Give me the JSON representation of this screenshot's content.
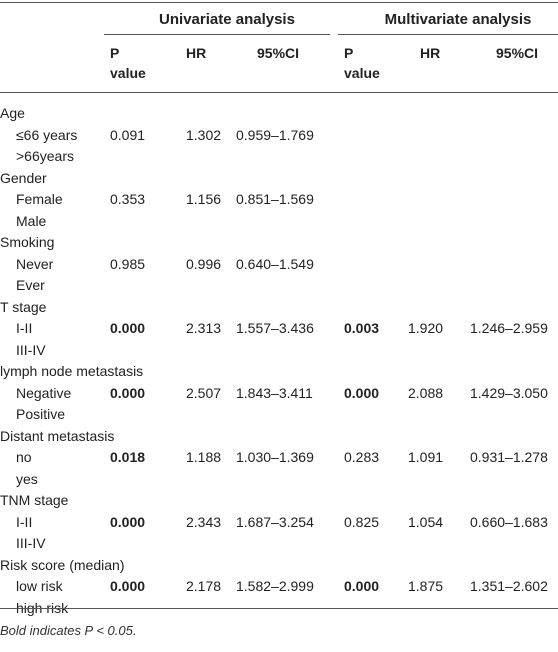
{
  "table": {
    "group_headers": {
      "univariate": "Univariate analysis",
      "multivariate": "Multivariate analysis"
    },
    "columns": {
      "p_value_line1": "P",
      "p_value_line2": "value",
      "hr": "HR",
      "ci": "95%CI"
    },
    "rows": [
      {
        "variable": "Age",
        "levels": [
          "≤66 years",
          ">66years"
        ],
        "uni_p": "0.091",
        "uni_p_bold": false,
        "uni_hr": "1.302",
        "uni_ci": "0.959–1.769",
        "multi_p": "",
        "multi_p_bold": false,
        "multi_hr": "",
        "multi_ci": ""
      },
      {
        "variable": "Gender",
        "levels": [
          "Female",
          "Male"
        ],
        "uni_p": "0.353",
        "uni_p_bold": false,
        "uni_hr": "1.156",
        "uni_ci": "0.851–1.569",
        "multi_p": "",
        "multi_p_bold": false,
        "multi_hr": "",
        "multi_ci": ""
      },
      {
        "variable": "Smoking",
        "levels": [
          "Never",
          "Ever"
        ],
        "uni_p": "0.985",
        "uni_p_bold": false,
        "uni_hr": "0.996",
        "uni_ci": "0.640–1.549",
        "multi_p": "",
        "multi_p_bold": false,
        "multi_hr": "",
        "multi_ci": ""
      },
      {
        "variable": "T stage",
        "levels": [
          "I-II",
          "III-IV"
        ],
        "uni_p": "0.000",
        "uni_p_bold": true,
        "uni_hr": "2.313",
        "uni_ci": "1.557–3.436",
        "multi_p": "0.003",
        "multi_p_bold": true,
        "multi_hr": "1.920",
        "multi_ci": "1.246–2.959"
      },
      {
        "variable": "lymph node metastasis",
        "levels": [
          "Negative",
          "Positive"
        ],
        "uni_p": "0.000",
        "uni_p_bold": true,
        "uni_hr": "2.507",
        "uni_ci": "1.843–3.411",
        "multi_p": "0.000",
        "multi_p_bold": true,
        "multi_hr": "2.088",
        "multi_ci": "1.429–3.050"
      },
      {
        "variable": "Distant metastasis",
        "levels": [
          "no",
          "yes"
        ],
        "uni_p": "0.018",
        "uni_p_bold": true,
        "uni_hr": "1.188",
        "uni_ci": "1.030–1.369",
        "multi_p": "0.283",
        "multi_p_bold": false,
        "multi_hr": "1.091",
        "multi_ci": "0.931–1.278"
      },
      {
        "variable": "TNM stage",
        "levels": [
          "I-II",
          "III-IV"
        ],
        "uni_p": "0.000",
        "uni_p_bold": true,
        "uni_hr": "2.343",
        "uni_ci": "1.687–3.254",
        "multi_p": "0.825",
        "multi_p_bold": false,
        "multi_hr": "1.054",
        "multi_ci": "0.660–1.683"
      },
      {
        "variable": "Risk score (median)",
        "levels": [
          "low risk",
          "high risk"
        ],
        "uni_p": "0.000",
        "uni_p_bold": true,
        "uni_hr": "2.178",
        "uni_ci": "1.582–2.999",
        "multi_p": "0.000",
        "multi_p_bold": true,
        "multi_hr": "1.875",
        "multi_ci": "1.351–2.602"
      }
    ],
    "footnote": "Bold indicates P < 0.05."
  }
}
